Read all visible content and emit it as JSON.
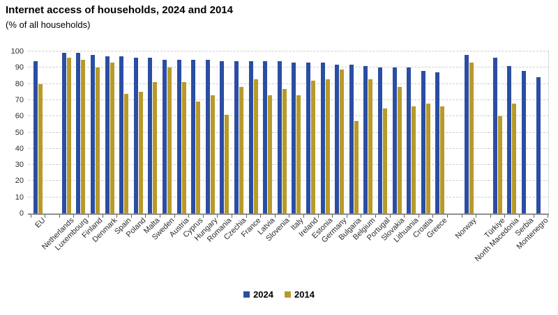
{
  "header": {
    "title": "Internet access of households, 2024 and 2014",
    "subtitle": "(% of all households)"
  },
  "legend": {
    "items": [
      {
        "label": "2024",
        "color": "#2B4EA3"
      },
      {
        "label": "2014",
        "color": "#B79A2A"
      }
    ]
  },
  "chart_data": {
    "type": "bar",
    "title": "Internet access of households, 2024 and 2014",
    "subtitle": "(% of all households)",
    "ylim": [
      0,
      100
    ],
    "ytick_step": 10,
    "grid": "horizontal dashed",
    "legend_position": "bottom center",
    "categories": [
      "EU",
      "Netherlands",
      "Luxembourg",
      "Finland",
      "Denmark",
      "Spain",
      "Poland",
      "Malta",
      "Sweden",
      "Austria",
      "Cyprus",
      "Hungary",
      "Romania",
      "Czechia",
      "France",
      "Latvia",
      "Slovenia",
      "Italy",
      "Ireland",
      "Estonia",
      "Germany",
      "Bulgaria",
      "Belgium",
      "Portugal",
      "Slovakia",
      "Lithuania",
      "Croatia",
      "Greece",
      "Norway",
      "Türkiye",
      "North Macedonia",
      "Serbia",
      "Montenegro"
    ],
    "spacer_after": [
      "EU",
      "Greece",
      "Norway"
    ],
    "series": [
      {
        "name": "2024",
        "color": "#2B4EA3",
        "values": [
          94,
          99,
          99,
          98,
          97,
          97,
          96,
          96,
          95,
          95,
          95,
          95,
          94,
          94,
          94,
          94,
          94,
          93,
          93,
          93,
          92,
          92,
          91,
          90,
          90,
          90,
          88,
          87,
          98,
          96,
          91,
          88,
          84
        ]
      },
      {
        "name": "2014",
        "color": "#B79A2A",
        "values": [
          80,
          96,
          95,
          90,
          93,
          74,
          75,
          81,
          90,
          81,
          69,
          73,
          61,
          78,
          83,
          73,
          77,
          73,
          82,
          83,
          89,
          57,
          83,
          65,
          78,
          66,
          68,
          66,
          93,
          60,
          68,
          null,
          null
        ]
      }
    ]
  }
}
